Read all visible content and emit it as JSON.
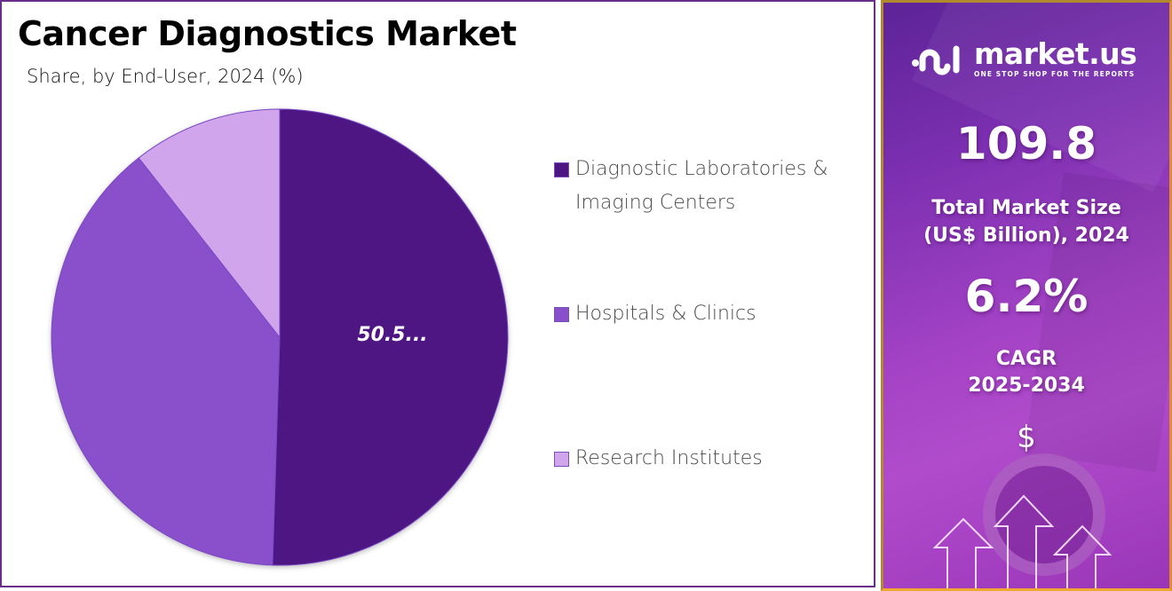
{
  "header": {
    "title": "Cancer Diagnostics Market",
    "subtitle": "Share, by End-User, 2024 (%)"
  },
  "chart_data": {
    "type": "pie",
    "title": "Cancer Diagnostics Market",
    "subtitle": "Share, by End-User, 2024 (%)",
    "categories": [
      "Diagnostic Laboratories & Imaging Centers",
      "Hospitals & Clinics",
      "Research Institutes"
    ],
    "values": [
      50.5,
      38.9,
      10.6
    ],
    "colors": [
      "#4d1683",
      "#8a4fcb",
      "#d0a5ec"
    ],
    "data_labels": [
      "50.5...",
      "",
      ""
    ],
    "start_angle_deg": 0,
    "direction": "clockwise",
    "legend_position": "right"
  },
  "legend": {
    "items": [
      {
        "label": "Diagnostic Laboratories & Imaging Centers",
        "color": "#4d1683"
      },
      {
        "label": "Hospitals & Clinics",
        "color": "#8a4fcb"
      },
      {
        "label": "Research Institutes",
        "color": "#d0a5ec"
      }
    ]
  },
  "sidebar": {
    "brand": {
      "name": "market.us",
      "tagline": "ONE STOP SHOP FOR THE REPORTS"
    },
    "market_size": {
      "value": "109.8",
      "label_line1": "Total Market Size",
      "label_line2": "(US$ Billion), 2024"
    },
    "cagr": {
      "value": "6.2%",
      "label_line1": "CAGR",
      "label_line2": "2025-2034"
    },
    "currency_symbol": "$"
  }
}
